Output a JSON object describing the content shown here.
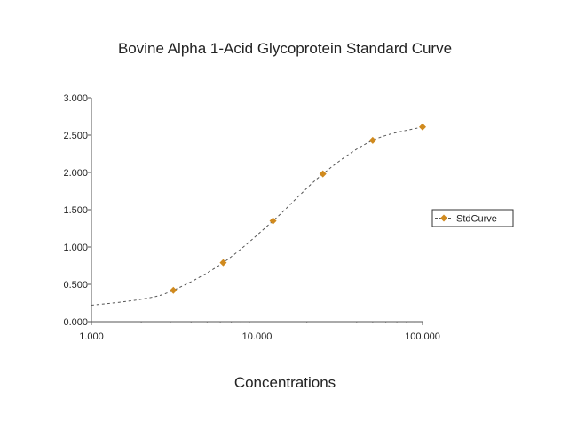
{
  "chart_data": {
    "type": "scatter",
    "title": "Bovine Alpha 1-Acid Glycoprotein Standard Curve",
    "xlabel": "Concentrations",
    "ylabel": "",
    "x_scale": "log",
    "xlim": [
      1,
      100
    ],
    "ylim": [
      0,
      3
    ],
    "x_ticks": [
      1,
      10,
      100
    ],
    "x_tick_labels": [
      "1.000",
      "10.000",
      "100.000"
    ],
    "y_ticks": [
      0,
      0.5,
      1,
      1.5,
      2,
      2.5,
      3
    ],
    "y_tick_labels": [
      "0.000",
      "0.500",
      "1.000",
      "1.500",
      "2.000",
      "2.500",
      "3.000"
    ],
    "grid": false,
    "legend_position": "right",
    "series": [
      {
        "name": "StdCurve",
        "color": "#d08a1e",
        "marker": "diamond",
        "line": "dashed-fit",
        "x": [
          3.125,
          6.25,
          12.5,
          25,
          50,
          100
        ],
        "y": [
          0.42,
          0.79,
          1.35,
          1.98,
          2.43,
          2.61
        ]
      }
    ],
    "fit_curve": {
      "color": "#555555",
      "x": [
        1,
        2,
        3.125,
        6.25,
        12.5,
        25,
        50,
        100
      ],
      "y": [
        0.22,
        0.3,
        0.42,
        0.79,
        1.35,
        1.98,
        2.43,
        2.61
      ]
    }
  }
}
